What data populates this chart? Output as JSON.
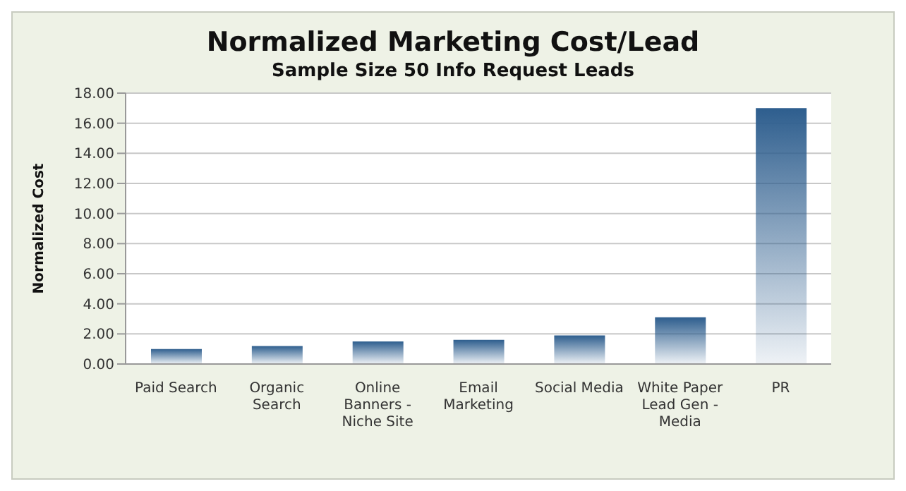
{
  "chart_data": {
    "type": "bar",
    "title": "Normalized Marketing Cost/Lead",
    "subtitle": "Sample Size 50 Info Request Leads",
    "ylabel": "Normalized Cost",
    "categories": [
      "Paid Search",
      "Organic Search",
      "Online Banners - Niche Site",
      "Email Marketing",
      "Social Media",
      "White Paper Lead Gen - Media",
      "PR"
    ],
    "values": [
      1.0,
      1.2,
      1.5,
      1.6,
      1.9,
      3.1,
      17.0
    ],
    "color": "#2e5e8e",
    "ylim": [
      0,
      18
    ],
    "yticks": [
      {
        "value": 0,
        "label": "0.00"
      },
      {
        "value": 2,
        "label": "2.00"
      },
      {
        "value": 4,
        "label": "4.00"
      },
      {
        "value": 6,
        "label": "6.00"
      },
      {
        "value": 8,
        "label": "8.00"
      },
      {
        "value": 10,
        "label": "10.00"
      },
      {
        "value": 12,
        "label": "12.00"
      },
      {
        "value": 14,
        "label": "14.00"
      },
      {
        "value": 16,
        "label": "16.00"
      },
      {
        "value": 18,
        "label": "18.00"
      }
    ],
    "grid": "y",
    "legend": false
  }
}
